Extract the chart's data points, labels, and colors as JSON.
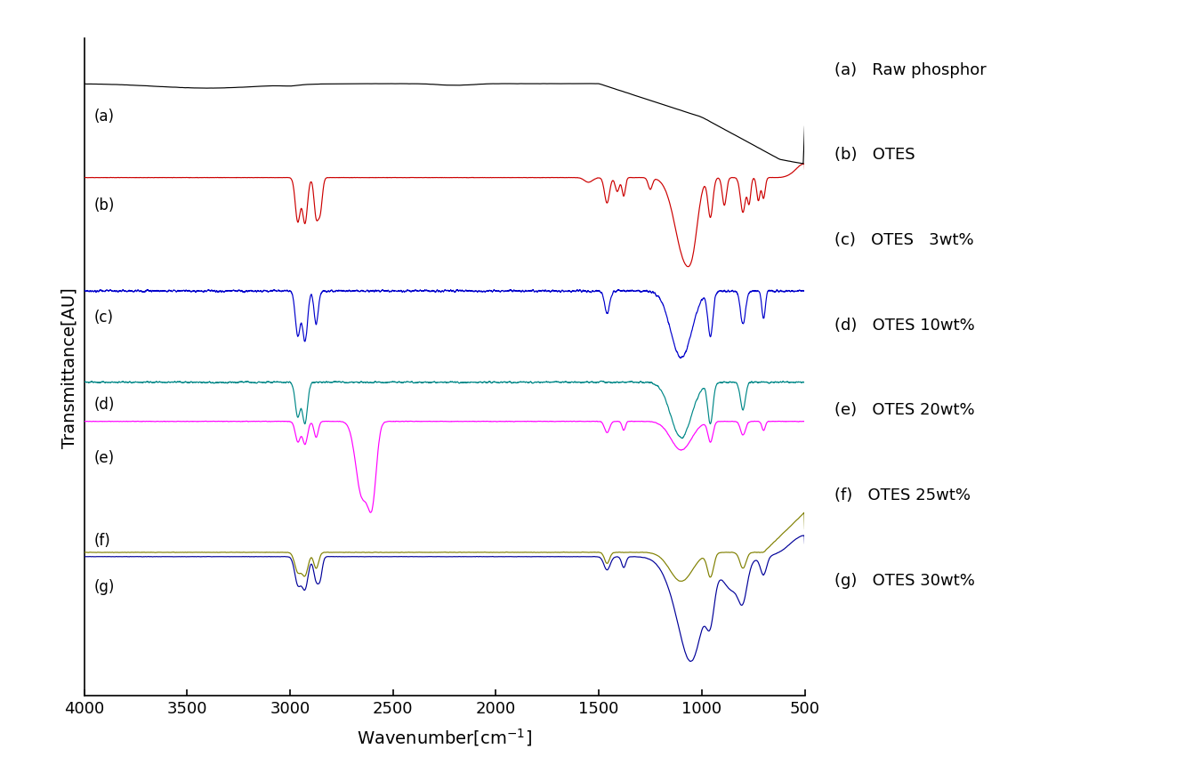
{
  "xlabel": "Wavenumber[cm⁻¹]",
  "ylabel": "Transmittance[AU]",
  "xlim": [
    4000,
    500
  ],
  "legend_labels": [
    "(a)   Raw phosphor",
    "(b)   OTES",
    "(c)   OTES   3wt%",
    "(d)   OTES 10wt%",
    "(e)   OTES 20wt%",
    "(f)   OTES 25wt%",
    "(g)   OTES 30wt%"
  ],
  "colors": [
    "black",
    "#cc0000",
    "#0000cc",
    "#008888",
    "#ff00ff",
    "#808000",
    "#000099"
  ],
  "curve_labels": [
    "(a)",
    "(b)",
    "(c)",
    "(d)",
    "(e)",
    "(f)",
    "(g)"
  ],
  "xticks": [
    4000,
    3500,
    3000,
    2500,
    2000,
    1500,
    1000,
    500
  ],
  "background_color": "#ffffff"
}
